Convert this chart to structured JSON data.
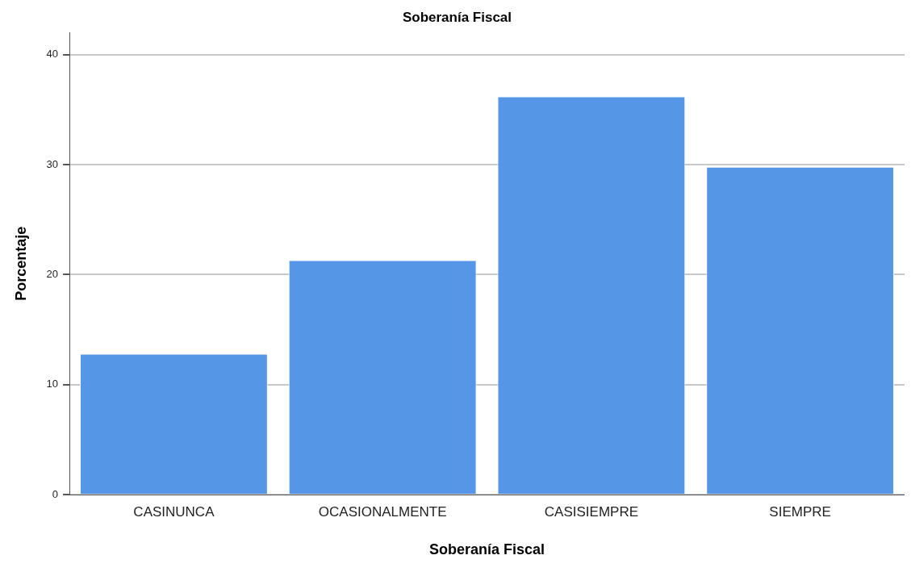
{
  "chart_data": {
    "type": "bar",
    "title": "Soberanía Fiscal",
    "xlabel": "Soberanía Fiscal",
    "ylabel": "Porcentaje",
    "categories": [
      "CASINUNCA",
      "OCASIONALMENTE",
      "CASISIEMPRE",
      "SIEMPRE"
    ],
    "values": [
      12.8,
      21.3,
      36.2,
      29.8
    ],
    "color": "#5596e6",
    "ylim": [
      0,
      42
    ],
    "yticks": [
      0,
      10,
      20,
      30,
      40
    ],
    "grid": "y",
    "legend": false
  }
}
